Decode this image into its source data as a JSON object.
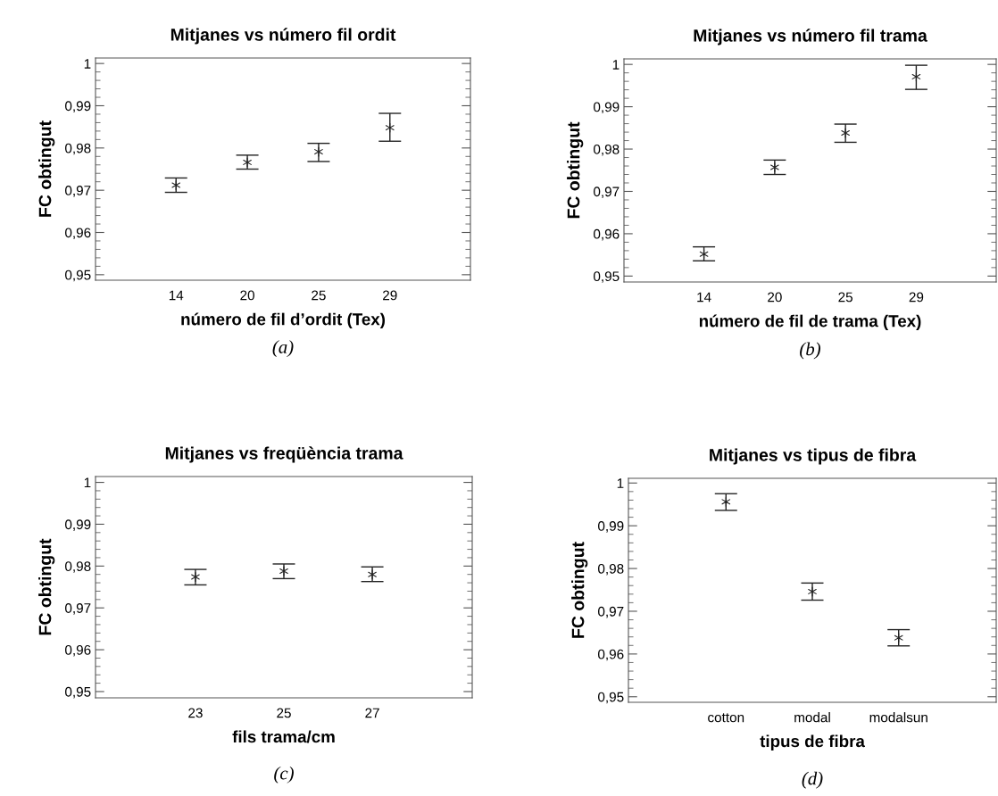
{
  "chart_data": [
    {
      "type": "scatter",
      "title": "Mitjanes vs número fil ordit",
      "xlabel": "número de fil d’ordit (Tex)",
      "ylabel": "FC obtingut",
      "annotations": [
        "(a)"
      ],
      "categories": [
        "14",
        "20",
        "25",
        "29"
      ],
      "marker": "cross",
      "color": "#222222",
      "values": [
        0.9712,
        0.9766,
        0.9791,
        0.9848
      ],
      "errors": [
        [
          0.9695,
          0.9729
        ],
        [
          0.975,
          0.9783
        ],
        [
          0.9768,
          0.9811
        ],
        [
          0.9816,
          0.9882
        ]
      ],
      "ylim": [
        0.9487,
        1.0013
      ],
      "yticks": [
        {
          "value": 0.95,
          "label": "0,95"
        },
        {
          "value": 0.96,
          "label": "0,96"
        },
        {
          "value": 0.97,
          "label": "0,97"
        },
        {
          "value": 0.98,
          "label": "0,98"
        },
        {
          "value": 0.99,
          "label": "0,99"
        },
        1
      ],
      "grid": false,
      "legend": false
    },
    {
      "type": "scatter",
      "title": "Mitjanes vs número fil trama",
      "xlabel": "número de fil de trama (Tex)",
      "ylabel": "FC obtingut",
      "annotations": [
        "(b)"
      ],
      "categories": [
        "14",
        "20",
        "25",
        "29"
      ],
      "marker": "cross",
      "color": "#222222",
      "values": [
        0.9552,
        0.9757,
        0.9838,
        0.9971
      ],
      "errors": [
        [
          0.9536,
          0.9569
        ],
        [
          0.974,
          0.9774
        ],
        [
          0.9816,
          0.9859
        ],
        [
          0.9941,
          0.9998
        ]
      ],
      "ylim": [
        0.9486,
        1.0013
      ],
      "yticks": [
        {
          "value": 0.95,
          "label": "0,95"
        },
        {
          "value": 0.96,
          "label": "0,96"
        },
        {
          "value": 0.97,
          "label": "0,97"
        },
        {
          "value": 0.98,
          "label": "0,98"
        },
        {
          "value": 0.99,
          "label": "0,99"
        },
        1
      ],
      "grid": false,
      "legend": false
    },
    {
      "type": "scatter",
      "title": "Mitjanes vs freqüència trama",
      "xlabel": "fils trama/cm",
      "ylabel": "FC obtingut",
      "annotations": [
        "(c)"
      ],
      "categories": [
        "23",
        "25",
        "27"
      ],
      "marker": "cross",
      "color": "#222222",
      "values": [
        0.9774,
        0.9788,
        0.978
      ],
      "errors": [
        [
          0.9755,
          0.9792
        ],
        [
          0.977,
          0.9805
        ],
        [
          0.9763,
          0.9798
        ]
      ],
      "ylim": [
        0.9485,
        1.0014
      ],
      "yticks": [
        {
          "value": 0.95,
          "label": "0,95"
        },
        {
          "value": 0.96,
          "label": "0,96"
        },
        {
          "value": 0.97,
          "label": "0,97"
        },
        {
          "value": 0.98,
          "label": "0,98"
        },
        {
          "value": 0.99,
          "label": "0,99"
        },
        1
      ],
      "grid": false,
      "legend": false
    },
    {
      "type": "scatter",
      "title": "Mitjanes vs tipus de fibra",
      "xlabel": "tipus de fibra",
      "ylabel": "FC obtingut",
      "annotations": [
        "(d)"
      ],
      "categories": [
        "cotton",
        "modal",
        "modalsun"
      ],
      "marker": "cross",
      "color": "#222222",
      "values": [
        0.9956,
        0.9746,
        0.9638
      ],
      "errors": [
        [
          0.9936,
          0.9975
        ],
        [
          0.9726,
          0.9766
        ],
        [
          0.9619,
          0.9657
        ]
      ],
      "ylim": [
        0.9487,
        1.0011
      ],
      "yticks": [
        {
          "value": 0.95,
          "label": "0,95"
        },
        {
          "value": 0.96,
          "label": "0,96"
        },
        {
          "value": 0.97,
          "label": "0,97"
        },
        {
          "value": 0.98,
          "label": "0,98"
        },
        {
          "value": 0.99,
          "label": "0,99"
        },
        1
      ],
      "grid": false,
      "legend": false
    }
  ]
}
